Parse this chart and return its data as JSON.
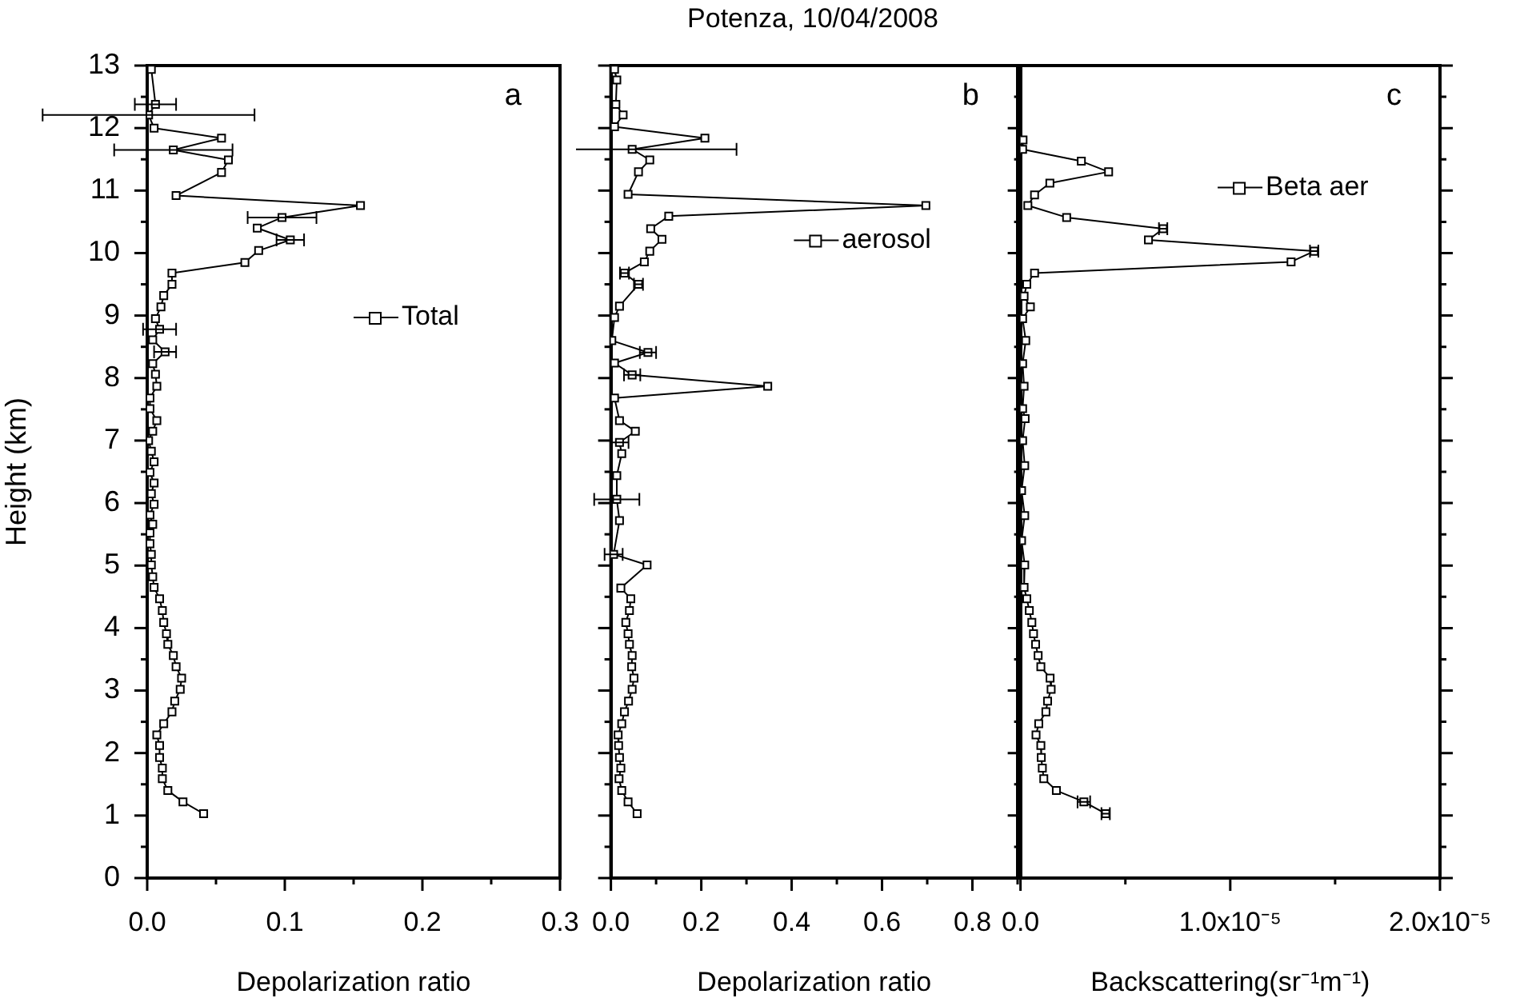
{
  "chart_data": [
    {
      "type": "line",
      "xlabel": "Depolarization ratio",
      "ylabel": "Height (km)",
      "xlim": [
        0,
        0.3
      ],
      "xticks": [
        {
          "value": 0,
          "label": "0.0"
        },
        {
          "value": 0.05,
          "label": null
        },
        {
          "value": 0.1,
          "label": "0.1"
        },
        {
          "value": 0.15,
          "label": null
        },
        {
          "value": 0.2,
          "label": "0.2"
        },
        {
          "value": 0.25,
          "label": null
        },
        {
          "value": 0.3,
          "label": "0.3"
        }
      ],
      "ylim": [
        0,
        13
      ],
      "yticks": [
        0,
        {
          "value": 0.5,
          "label": null
        },
        1,
        {
          "value": 1.5,
          "label": null
        },
        2,
        {
          "value": 2.5,
          "label": null
        },
        3,
        {
          "value": 3.5,
          "label": null
        },
        4,
        {
          "value": 4.5,
          "label": null
        },
        5,
        {
          "value": 5.5,
          "label": null
        },
        6,
        {
          "value": 6.5,
          "label": null
        },
        7,
        {
          "value": 7.5,
          "label": null
        },
        8,
        {
          "value": 8.5,
          "label": null
        },
        9,
        {
          "value": 9.5,
          "label": null
        },
        10,
        {
          "value": 10.5,
          "label": null
        },
        11,
        {
          "value": 11.5,
          "label": null
        },
        12,
        {
          "value": 12.5,
          "label": null
        },
        13
      ],
      "annotations": [
        "a"
      ],
      "legend": "right",
      "marker": "square",
      "series": [
        {
          "name": "Total",
          "color": "#000000",
          "x": [
            0.003,
            0.006,
            0.001,
            0.005,
            0.054,
            0.019,
            0.059,
            0.054,
            0.021,
            0.155,
            0.098,
            0.08,
            0.104,
            0.081,
            0.071,
            0.018,
            0.018,
            0.012,
            0.01,
            0.006,
            0.009,
            0.004,
            0.013,
            0.004,
            0.006,
            0.007,
            0.002,
            0.002,
            0.007,
            0.004,
            0.001,
            0.003,
            0.005,
            0.002,
            0.005,
            0.003,
            0.005,
            0.002,
            0.004,
            0.002,
            0.002,
            0.003,
            0.003,
            0.004,
            0.005,
            0.009,
            0.011,
            0.012,
            0.014,
            0.015,
            0.019,
            0.021,
            0.025,
            0.024,
            0.02,
            0.018,
            0.012,
            0.007,
            0.009,
            0.009,
            0.011,
            0.011,
            0.015,
            0.026,
            0.041
          ],
          "values": [
            12.94,
            12.38,
            12.21,
            12.0,
            11.84,
            11.65,
            11.49,
            11.29,
            10.92,
            10.76,
            10.57,
            10.4,
            10.21,
            10.04,
            9.85,
            9.68,
            9.5,
            9.32,
            9.14,
            8.95,
            8.78,
            8.61,
            8.42,
            8.23,
            8.06,
            7.87,
            7.68,
            7.51,
            7.32,
            7.15,
            7.0,
            6.83,
            6.66,
            6.49,
            6.32,
            6.15,
            5.98,
            5.81,
            5.66,
            5.52,
            5.35,
            5.18,
            5.01,
            4.82,
            4.65,
            4.47,
            4.28,
            4.09,
            3.91,
            3.74,
            3.56,
            3.38,
            3.2,
            3.02,
            2.83,
            2.66,
            2.47,
            2.29,
            2.12,
            1.93,
            1.76,
            1.59,
            1.4,
            1.22,
            1.03
          ],
          "xerrors": [
            null,
            0.015,
            0.077,
            null,
            null,
            0.043,
            null,
            null,
            null,
            null,
            0.025,
            null,
            0.01,
            null,
            null,
            null,
            null,
            null,
            null,
            null,
            0.012,
            null,
            0.008,
            null,
            null,
            null,
            null,
            null,
            null,
            null,
            null,
            null,
            null,
            null,
            null,
            null,
            null,
            null,
            null,
            null,
            null,
            null,
            null,
            null,
            null,
            null,
            null,
            null,
            null,
            null,
            null,
            null,
            null,
            null,
            null,
            null,
            null,
            null,
            null,
            null,
            null,
            null,
            null,
            null,
            null
          ]
        }
      ]
    },
    {
      "type": "line",
      "title": "Potenza, 10/04/2008",
      "xlabel": "Depolarization ratio",
      "xlim": [
        0,
        0.9
      ],
      "xticks": [
        {
          "value": 0,
          "label": "0.0"
        },
        {
          "value": 0.1,
          "label": null
        },
        0.2,
        {
          "value": 0.3,
          "label": null
        },
        0.4,
        {
          "value": 0.5,
          "label": null
        },
        0.6,
        {
          "value": 0.7,
          "label": null
        },
        0.8,
        {
          "value": 0.9,
          "label": null
        }
      ],
      "ylim": [
        0,
        13
      ],
      "yticks": [
        0,
        {
          "value": 0.5,
          "label": null
        },
        1,
        {
          "value": 1.5,
          "label": null
        },
        2,
        {
          "value": 2.5,
          "label": null
        },
        3,
        {
          "value": 3.5,
          "label": null
        },
        4,
        {
          "value": 4.5,
          "label": null
        },
        5,
        {
          "value": 5.5,
          "label": null
        },
        6,
        {
          "value": 6.5,
          "label": null
        },
        7,
        {
          "value": 7.5,
          "label": null
        },
        8,
        {
          "value": 8.5,
          "label": null
        },
        9,
        {
          "value": 9.5,
          "label": null
        },
        10,
        {
          "value": 10.5,
          "label": null
        },
        11,
        {
          "value": 11.5,
          "label": null
        },
        12,
        {
          "value": 12.5,
          "label": null
        },
        13
      ],
      "tick_labels": "x",
      "annotations": [
        "b"
      ],
      "legend": "top right",
      "marker": "square",
      "series": [
        {
          "name": "aerosol",
          "color": "#000000",
          "x": [
            0.008,
            0.013,
            0.011,
            0.027,
            0.008,
            0.208,
            0.047,
            0.086,
            0.061,
            0.038,
            0.697,
            0.128,
            0.088,
            0.113,
            0.086,
            0.074,
            0.03,
            0.061,
            0.019,
            0.008,
            0.002,
            0.082,
            0.008,
            0.047,
            0.347,
            0.008,
            0.019,
            0.054,
            0.019,
            0.024,
            0.013,
            0.013,
            0.019,
            0.006,
            0.08,
            0.022,
            0.044,
            0.041,
            0.033,
            0.038,
            0.041,
            0.047,
            0.046,
            0.051,
            0.047,
            0.039,
            0.03,
            0.024,
            0.016,
            0.017,
            0.019,
            0.022,
            0.018,
            0.024,
            0.038,
            0.058
          ],
          "values": [
            12.94,
            12.77,
            12.38,
            12.21,
            12.02,
            11.84,
            11.66,
            11.49,
            11.3,
            10.94,
            10.76,
            10.59,
            10.39,
            10.22,
            10.03,
            9.86,
            9.68,
            9.5,
            9.15,
            8.97,
            8.6,
            8.41,
            8.24,
            8.05,
            7.87,
            7.68,
            7.32,
            7.15,
            6.97,
            6.79,
            6.44,
            6.06,
            5.72,
            5.18,
            5.01,
            4.64,
            4.47,
            4.28,
            4.09,
            3.91,
            3.74,
            3.56,
            3.38,
            3.2,
            3.02,
            2.83,
            2.66,
            2.47,
            2.29,
            2.12,
            1.93,
            1.76,
            1.59,
            1.4,
            1.22,
            1.03
          ],
          "xerrors": [
            null,
            null,
            null,
            null,
            null,
            null,
            0.231,
            null,
            null,
            null,
            null,
            null,
            null,
            null,
            null,
            null,
            0.01,
            0.01,
            null,
            null,
            null,
            0.018,
            null,
            0.018,
            null,
            null,
            null,
            null,
            0.02,
            null,
            null,
            0.05,
            null,
            0.02,
            null,
            null,
            null,
            null,
            null,
            null,
            null,
            null,
            null,
            null,
            null,
            null,
            null,
            null,
            null,
            null,
            null,
            null,
            null,
            null,
            null,
            null
          ]
        }
      ]
    },
    {
      "type": "line",
      "xlabel": "Backscattering(sr⁻¹m⁻¹)",
      "xlim": [
        0,
        2e-05
      ],
      "xticks": [
        {
          "value": 0,
          "label": "0.0"
        },
        {
          "value": 5e-06,
          "label": null
        },
        {
          "value": 1e-05,
          "label": "1.0x10⁻⁵"
        },
        {
          "value": 1.5e-05,
          "label": null
        },
        {
          "value": 2e-05,
          "label": "2.0x10⁻⁵"
        }
      ],
      "ylim": [
        0,
        13
      ],
      "yticks": [
        0,
        {
          "value": 0.5,
          "label": null
        },
        1,
        {
          "value": 1.5,
          "label": null
        },
        2,
        {
          "value": 2.5,
          "label": null
        },
        3,
        {
          "value": 3.5,
          "label": null
        },
        4,
        {
          "value": 4.5,
          "label": null
        },
        5,
        {
          "value": 5.5,
          "label": null
        },
        6,
        {
          "value": 6.5,
          "label": null
        },
        7,
        {
          "value": 7.5,
          "label": null
        },
        8,
        {
          "value": 8.5,
          "label": null
        },
        9,
        {
          "value": 9.5,
          "label": null
        },
        10,
        {
          "value": 10.5,
          "label": null
        },
        11,
        {
          "value": 11.5,
          "label": null
        },
        12,
        {
          "value": 12.5,
          "label": null
        },
        13
      ],
      "tick_labels": "x",
      "annotations": [
        "c"
      ],
      "legend": "top right",
      "marker": "square",
      "series": [
        {
          "name": "Beta aer",
          "color": "#000000",
          "x": [
            1.2e-07,
            1e-07,
            2.9e-06,
            4.2e-06,
            1.4e-06,
            6.7e-07,
            3.5e-07,
            2.2e-06,
            6.8e-06,
            6.1e-06,
            1.4e-05,
            1.29e-05,
            6.7e-07,
            3e-07,
            1.7e-07,
            4.7e-07,
            1e-07,
            2.5e-07,
            1e-07,
            1.7e-07,
            1e-07,
            2.2e-07,
            1e-07,
            2e-07,
            5e-08,
            2e-07,
            5e-08,
            2e-07,
            1.7e-07,
            3e-07,
            4.2e-07,
            5.4e-07,
            6.2e-07,
            7.2e-07,
            8.4e-07,
            9.7e-07,
            1.41e-06,
            1.46e-06,
            1.29e-06,
            1.21e-06,
            8.7e-07,
            7.4e-07,
            9.7e-07,
            9.9e-07,
            1.04e-06,
            1.11e-06,
            1.71e-06,
            3.02e-06,
            4.06e-06
          ],
          "values": [
            11.81,
            11.66,
            11.47,
            11.3,
            11.12,
            10.93,
            10.76,
            10.57,
            10.39,
            10.21,
            10.03,
            9.86,
            9.68,
            9.5,
            9.31,
            9.14,
            8.95,
            8.6,
            8.23,
            7.87,
            7.51,
            7.35,
            7.0,
            6.6,
            6.2,
            5.8,
            5.4,
            5.01,
            4.65,
            4.47,
            4.28,
            4.09,
            3.91,
            3.74,
            3.56,
            3.38,
            3.2,
            3.02,
            2.83,
            2.66,
            2.47,
            2.29,
            2.12,
            1.93,
            1.76,
            1.59,
            1.4,
            1.22,
            1.03
          ],
          "xerrors": [
            null,
            null,
            null,
            null,
            null,
            null,
            null,
            null,
            2e-07,
            null,
            2e-07,
            null,
            null,
            null,
            null,
            null,
            null,
            null,
            null,
            null,
            null,
            null,
            null,
            null,
            null,
            null,
            null,
            null,
            null,
            null,
            null,
            null,
            null,
            null,
            null,
            null,
            null,
            null,
            null,
            null,
            null,
            null,
            null,
            null,
            null,
            null,
            null,
            3e-07,
            2e-07
          ]
        }
      ]
    }
  ]
}
